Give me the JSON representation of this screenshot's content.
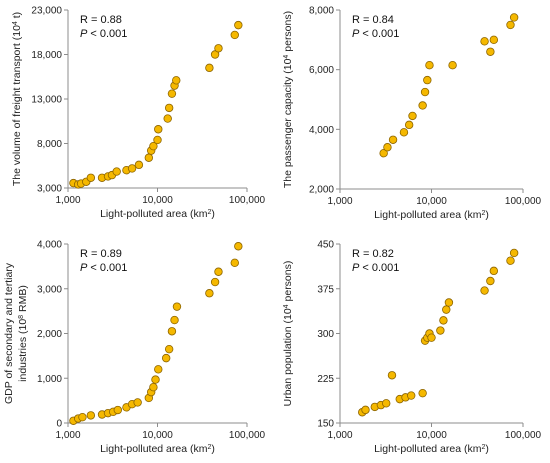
{
  "chart_data": [
    {
      "type": "scatter",
      "xscale": "log",
      "xlim": [
        1000,
        100000
      ],
      "ylim": [
        3000,
        23000
      ],
      "x_ticks": [
        1000,
        10000,
        100000
      ],
      "x_tick_labels": [
        "1,000",
        "10,000",
        "100,000"
      ],
      "y_ticks": [
        3000,
        8000,
        13000,
        18000,
        23000
      ],
      "y_tick_labels": [
        "3,000",
        "8,000",
        "13,000",
        "18,000",
        "23,000"
      ],
      "xlabel": {
        "pre": "Light-polluted area (km",
        "sup": "2",
        "post": ")"
      },
      "ylabel": {
        "pre": "The volume of freight transport (10",
        "sup": "4",
        "post": " t)"
      },
      "r_text": "R = 0.88",
      "p_prefix": "P",
      "p_suffix": " < 0.001",
      "points": [
        [
          1150,
          3550
        ],
        [
          1300,
          3400
        ],
        [
          1400,
          3500
        ],
        [
          1600,
          3700
        ],
        [
          1800,
          4150
        ],
        [
          2400,
          4150
        ],
        [
          2800,
          4300
        ],
        [
          3100,
          4450
        ],
        [
          3500,
          4850
        ],
        [
          4500,
          5000
        ],
        [
          5200,
          5200
        ],
        [
          6200,
          5600
        ],
        [
          8000,
          6400
        ],
        [
          8500,
          7200
        ],
        [
          9000,
          7700
        ],
        [
          10000,
          8400
        ],
        [
          10200,
          9600
        ],
        [
          13000,
          10800
        ],
        [
          13500,
          12000
        ],
        [
          14500,
          13600
        ],
        [
          15500,
          14500
        ],
        [
          16200,
          15100
        ],
        [
          38000,
          16500
        ],
        [
          44000,
          18000
        ],
        [
          48000,
          18700
        ],
        [
          73000,
          20200
        ],
        [
          80000,
          21300
        ]
      ]
    },
    {
      "type": "scatter",
      "xscale": "log",
      "xlim": [
        1000,
        100000
      ],
      "ylim": [
        2000,
        8000
      ],
      "x_ticks": [
        1000,
        10000,
        100000
      ],
      "x_tick_labels": [
        "1,000",
        "10,000",
        "100,000"
      ],
      "y_ticks": [
        2000,
        4000,
        6000,
        8000
      ],
      "y_tick_labels": [
        "2,000",
        "4,000",
        "6,000",
        "8,000"
      ],
      "xlabel": {
        "pre": "Light-polluted area (km",
        "sup": "2",
        "post": ")"
      },
      "ylabel": {
        "pre": "The passenger capacity (10",
        "sup": "4",
        "post": " persons)"
      },
      "r_text": "R = 0.84",
      "p_prefix": "P",
      "p_suffix": " < 0.001",
      "points": [
        [
          3000,
          3200
        ],
        [
          3300,
          3400
        ],
        [
          3800,
          3650
        ],
        [
          5000,
          3900
        ],
        [
          5700,
          4150
        ],
        [
          6200,
          4450
        ],
        [
          8000,
          4800
        ],
        [
          8500,
          5250
        ],
        [
          9000,
          5650
        ],
        [
          9500,
          6150
        ],
        [
          17000,
          6150
        ],
        [
          38000,
          6950
        ],
        [
          44000,
          6600
        ],
        [
          48000,
          7000
        ],
        [
          73000,
          7500
        ],
        [
          80000,
          7750
        ]
      ]
    },
    {
      "type": "scatter",
      "xscale": "log",
      "xlim": [
        1000,
        100000
      ],
      "ylim": [
        0,
        4000
      ],
      "x_ticks": [
        1000,
        10000,
        100000
      ],
      "x_tick_labels": [
        "1,000",
        "10,000",
        "100,000"
      ],
      "y_ticks": [
        0,
        1000,
        2000,
        3000,
        4000
      ],
      "y_tick_labels": [
        "0",
        "1,000",
        "2,000",
        "3,000",
        "4,000"
      ],
      "xlabel": {
        "pre": "Light-polluted area (km",
        "sup": "2",
        "post": ")"
      },
      "ylabel": {
        "pre": "GDP of secondary and tertiary",
        "sup": "",
        "post": ""
      },
      "ylabel2": {
        "pre": "industries (10",
        "sup": "8",
        "post": " RMB)"
      },
      "r_text": "R = 0.89",
      "p_prefix": "P",
      "p_suffix": " < 0.001",
      "points": [
        [
          1150,
          50
        ],
        [
          1300,
          100
        ],
        [
          1450,
          130
        ],
        [
          1800,
          170
        ],
        [
          2400,
          190
        ],
        [
          2800,
          220
        ],
        [
          3200,
          250
        ],
        [
          3600,
          290
        ],
        [
          4500,
          350
        ],
        [
          5200,
          420
        ],
        [
          6000,
          460
        ],
        [
          8000,
          560
        ],
        [
          8500,
          690
        ],
        [
          9000,
          800
        ],
        [
          9500,
          970
        ],
        [
          10200,
          1200
        ],
        [
          12500,
          1450
        ],
        [
          13500,
          1650
        ],
        [
          14500,
          2050
        ],
        [
          15500,
          2300
        ],
        [
          16500,
          2600
        ],
        [
          38000,
          2900
        ],
        [
          44000,
          3150
        ],
        [
          48000,
          3380
        ],
        [
          73000,
          3580
        ],
        [
          80000,
          3950
        ]
      ]
    },
    {
      "type": "scatter",
      "xscale": "log",
      "xlim": [
        1000,
        100000
      ],
      "ylim": [
        150,
        450
      ],
      "x_ticks": [
        1000,
        10000,
        100000
      ],
      "x_tick_labels": [
        "1,000",
        "10,000",
        "100,000"
      ],
      "y_ticks": [
        150,
        225,
        300,
        375,
        450
      ],
      "y_tick_labels": [
        "150",
        "225",
        "300",
        "375",
        "450"
      ],
      "xlabel": {
        "pre": "Light-polluted area (km",
        "sup": "2",
        "post": ")"
      },
      "ylabel": {
        "pre": "Urban population (10",
        "sup": "4",
        "post": " persons)"
      },
      "r_text": "R = 0.82",
      "p_prefix": "P",
      "p_suffix": " < 0.001",
      "points": [
        [
          1750,
          168
        ],
        [
          1900,
          172
        ],
        [
          2400,
          177
        ],
        [
          2800,
          180
        ],
        [
          3200,
          183
        ],
        [
          3700,
          230
        ],
        [
          4500,
          190
        ],
        [
          5200,
          193
        ],
        [
          6000,
          196
        ],
        [
          8000,
          200
        ],
        [
          8500,
          288
        ],
        [
          9000,
          293
        ],
        [
          9500,
          300
        ],
        [
          10000,
          293
        ],
        [
          12500,
          305
        ],
        [
          13500,
          322
        ],
        [
          14500,
          340
        ],
        [
          15500,
          352
        ],
        [
          38000,
          372
        ],
        [
          44000,
          388
        ],
        [
          48000,
          405
        ],
        [
          73000,
          422
        ],
        [
          80000,
          435
        ]
      ]
    }
  ]
}
